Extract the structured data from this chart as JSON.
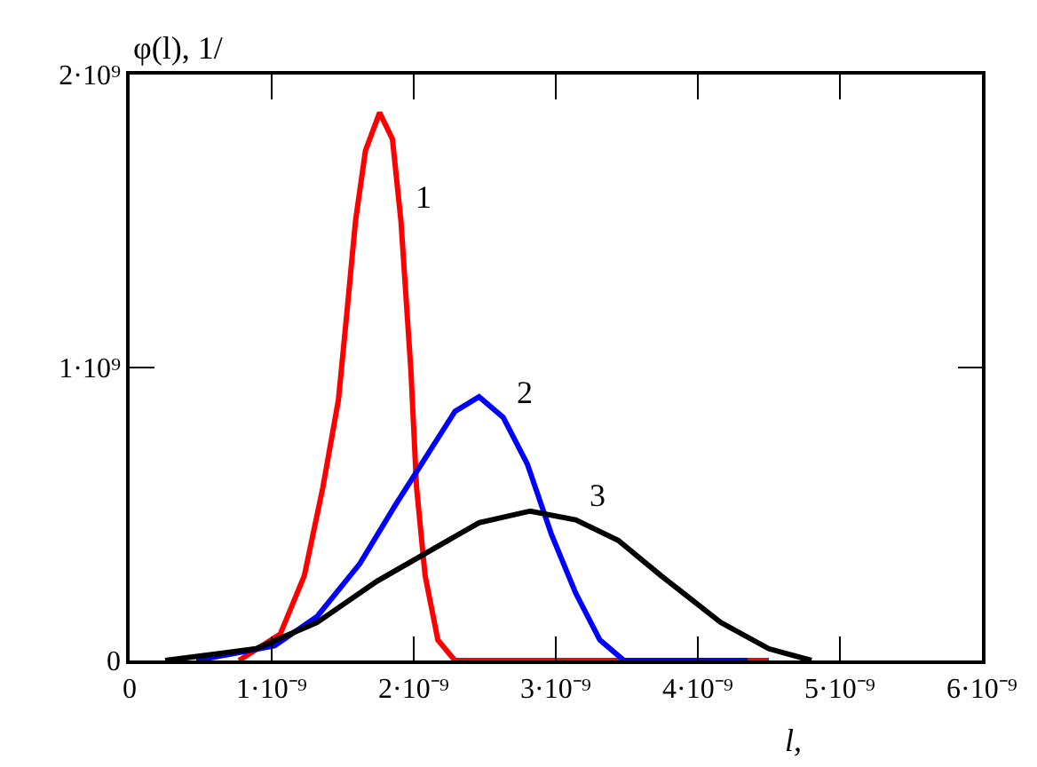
{
  "chart_data": {
    "type": "line",
    "ylabel": "φ(l), 1/",
    "xlabel": "l,",
    "xlim": [
      0,
      6e-09
    ],
    "xticks": [
      {
        "value": 0,
        "label": "0"
      },
      {
        "value": 1e-09,
        "label": "1·10⁻⁹"
      },
      {
        "value": 2e-09,
        "label": "2·10⁻⁹"
      },
      {
        "value": 3e-09,
        "label": "3·10⁻⁹"
      },
      {
        "value": 4e-09,
        "label": "4·10⁻⁹"
      },
      {
        "value": 5e-09,
        "label": "5·10⁻⁹"
      },
      {
        "value": 6e-09,
        "label": "6·10⁻⁹"
      }
    ],
    "ylim": [
      0,
      2000000000.0
    ],
    "yticks": [
      {
        "value": 0,
        "label": "0"
      },
      {
        "value": 1000000000.0,
        "label": "1·10⁹"
      },
      {
        "value": 2000000000.0,
        "label": "2·10⁹"
      }
    ],
    "legend": false,
    "marker": "none",
    "line_style": "solid",
    "series": [
      {
        "name": "1",
        "color": "#ff0000",
        "x": [
          7.7e-10,
          1.06e-09,
          1.23e-09,
          1.36e-09,
          1.47e-09,
          1.53e-09,
          1.59e-09,
          1.66e-09,
          1.76e-09,
          1.85e-09,
          1.91e-09,
          1.98e-09,
          2.02e-09,
          2.08e-09,
          2.17e-09,
          2.29e-09,
          4.5e-09
        ],
        "values": [
          0,
          90000000.0,
          290000000.0,
          590000000.0,
          890000000.0,
          1190000000.0,
          1500000000.0,
          1740000000.0,
          1870000000.0,
          1780000000.0,
          1500000000.0,
          990000000.0,
          590000000.0,
          290000000.0,
          70000000.0,
          0,
          0
        ]
      },
      {
        "name": "2",
        "color": "#0000ff",
        "x": [
          4.7e-10,
          1.02e-09,
          1.32e-09,
          1.62e-09,
          1.87e-09,
          2.08e-09,
          2.29e-09,
          2.46e-09,
          2.63e-09,
          2.8e-09,
          2.97e-09,
          3.14e-09,
          3.31e-09,
          3.48e-09,
          4.35e-09
        ],
        "values": [
          0,
          50000000.0,
          150000000.0,
          330000000.0,
          530000000.0,
          690000000.0,
          850000000.0,
          900000000.0,
          830000000.0,
          670000000.0,
          430000000.0,
          230000000.0,
          70000000.0,
          0,
          0
        ]
      },
      {
        "name": "3",
        "color": "#000000",
        "x": [
          2.5e-10,
          8.9e-10,
          1.32e-09,
          1.74e-09,
          2.17e-09,
          2.46e-09,
          2.82e-09,
          3.14e-09,
          3.44e-09,
          3.74e-09,
          4.16e-09,
          4.5e-09,
          4.8e-09
        ],
        "values": [
          0,
          40000000.0,
          130000000.0,
          270000000.0,
          390000000.0,
          470000000.0,
          510000000.0,
          480000000.0,
          410000000.0,
          290000000.0,
          130000000.0,
          40000000.0,
          0
        ]
      }
    ]
  }
}
